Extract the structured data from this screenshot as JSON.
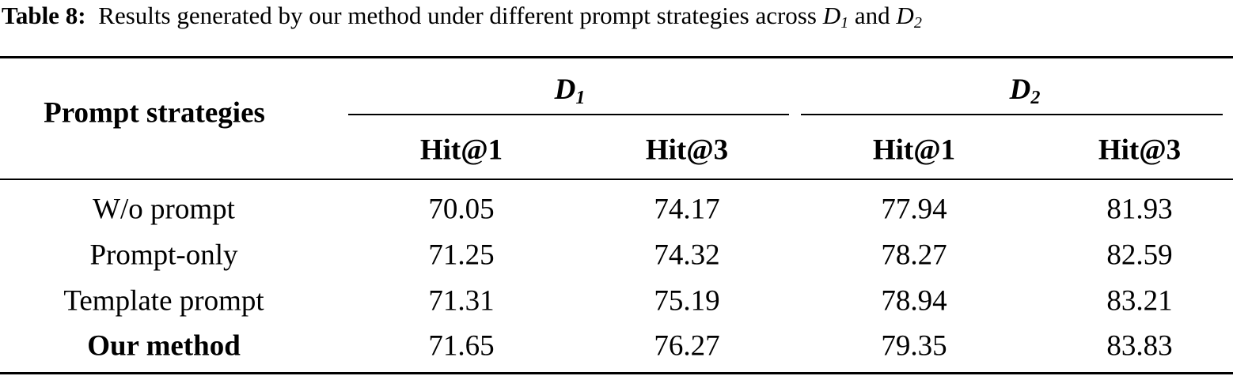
{
  "caption": {
    "label": "Table 8:",
    "text": "Results generated by our method under different prompt strategies across",
    "d1": "D",
    "d1_sub": "1",
    "and": "and",
    "d2": "D",
    "d2_sub": "2"
  },
  "table": {
    "header": {
      "row_label": "Prompt strategies",
      "groups": [
        {
          "name": "D",
          "sub": "1"
        },
        {
          "name": "D",
          "sub": "2"
        }
      ],
      "metrics": [
        "Hit@1",
        "Hit@3",
        "Hit@1",
        "Hit@3"
      ]
    },
    "rows": [
      {
        "label": "W/o prompt",
        "values": [
          "70.05",
          "74.17",
          "77.94",
          "81.93"
        ]
      },
      {
        "label": "Prompt-only",
        "values": [
          "71.25",
          "74.32",
          "78.27",
          "82.59"
        ]
      },
      {
        "label": "Template prompt",
        "values": [
          "71.31",
          "75.19",
          "78.94",
          "83.21"
        ]
      },
      {
        "label": "Our method",
        "values": [
          "71.65",
          "76.27",
          "79.35",
          "83.83"
        ]
      }
    ]
  }
}
